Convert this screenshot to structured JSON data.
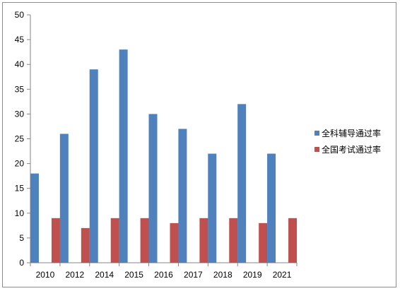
{
  "chart_data": {
    "type": "bar",
    "categories": [
      "2010",
      "2012",
      "2014",
      "2015",
      "2016",
      "2017",
      "2018",
      "2019",
      "2021"
    ],
    "series": [
      {
        "name": "全科辅导通过率",
        "color": "#4f81bd",
        "values": [
          18,
          26,
          39,
          43,
          30,
          27,
          22,
          32,
          22
        ]
      },
      {
        "name": "全国考试通过率",
        "color": "#c0504d",
        "values": [
          9,
          7,
          9,
          9,
          8,
          9,
          9,
          8,
          9
        ]
      }
    ],
    "title": "",
    "xlabel": "",
    "ylabel": "",
    "ylim": [
      0,
      50
    ],
    "yticks": [
      0,
      5,
      10,
      15,
      20,
      25,
      30,
      35,
      40,
      45,
      50
    ],
    "grid": false,
    "legend_position": "right"
  }
}
